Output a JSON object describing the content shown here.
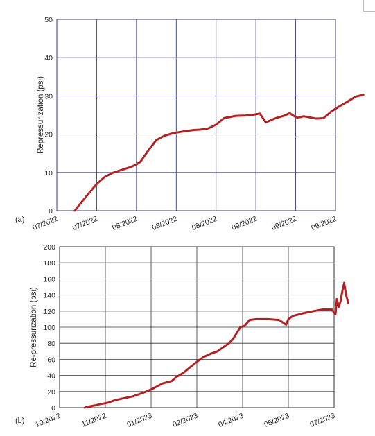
{
  "chart_data": [
    {
      "type": "line",
      "panel_label": "(a)",
      "ylabel": "Repressurization (psi)",
      "xlabel": "",
      "ylim": [
        0,
        50
      ],
      "yticks": [
        0,
        10,
        20,
        30,
        40,
        50
      ],
      "xtick_labels": [
        "07/2022",
        "07/2022",
        "08/2022",
        "08/2022",
        "08/2022",
        "09/2022",
        "09/2022",
        "09/2022"
      ],
      "grid": true,
      "color": "#b22222",
      "series": [
        {
          "x": [
            0.45,
            0.6,
            0.8,
            1.0,
            1.2,
            1.4,
            1.55,
            1.7,
            1.85,
            2.0,
            2.1,
            2.3,
            2.5,
            2.7,
            2.9,
            3.1,
            3.3,
            3.45,
            3.6,
            3.8,
            4.0,
            4.2,
            4.5,
            4.75,
            4.95,
            5.1,
            5.25,
            5.5,
            5.7,
            5.85,
            5.95,
            6.05,
            6.2,
            6.35,
            6.5,
            6.55,
            6.7,
            6.9,
            7.05,
            7.3,
            7.5,
            7.7
          ],
          "y": [
            0,
            2,
            4.5,
            7,
            8.8,
            9.9,
            10.4,
            10.9,
            11.4,
            12.1,
            12.8,
            15.8,
            18.5,
            19.6,
            20.2,
            20.6,
            20.9,
            21.1,
            21.2,
            21.5,
            22.5,
            24.2,
            24.8,
            24.9,
            25.1,
            25.4,
            23.1,
            24.2,
            24.8,
            25.5,
            24.8,
            24.3,
            24.7,
            24.4,
            24.1,
            24.1,
            24.2,
            26,
            27,
            28.5,
            29.8,
            30.3
          ]
        }
      ]
    },
    {
      "type": "line",
      "panel_label": "(b)",
      "ylabel": "Re-pressurization (psi)",
      "xlabel": "",
      "ylim": [
        0,
        200
      ],
      "yticks": [
        0,
        20,
        40,
        60,
        80,
        100,
        120,
        140,
        160,
        180,
        200
      ],
      "xtick_labels": [
        "10/2022",
        "11/2022",
        "01/2023",
        "02/2023",
        "04/2023",
        "05/2023",
        "07/2023"
      ],
      "grid": true,
      "color": "#b22222",
      "series": [
        {
          "x": [
            0.55,
            0.6,
            0.8,
            0.85,
            0.95,
            1.05,
            1.2,
            1.35,
            1.6,
            1.85,
            2.05,
            2.25,
            2.45,
            2.55,
            2.7,
            2.85,
            3.0,
            3.15,
            3.3,
            3.45,
            3.6,
            3.7,
            3.8,
            3.95,
            4.05,
            4.15,
            4.3,
            4.55,
            4.8,
            4.95,
            5.0,
            5.1,
            5.3,
            5.55,
            5.75,
            5.95,
            6.0,
            6.03,
            6.06,
            6.1,
            6.14,
            6.18,
            6.22,
            6.26,
            6.31
          ],
          "y": [
            0,
            1,
            3,
            4,
            5,
            6,
            9,
            11,
            14,
            19,
            24,
            30,
            33,
            38,
            43,
            50,
            57,
            63,
            67,
            70,
            76,
            80,
            86,
            100,
            102,
            109,
            110,
            110,
            109,
            103,
            110,
            114,
            117,
            120,
            122,
            122,
            118,
            116,
            135,
            125,
            132,
            145,
            155,
            140,
            130
          ]
        }
      ]
    }
  ]
}
